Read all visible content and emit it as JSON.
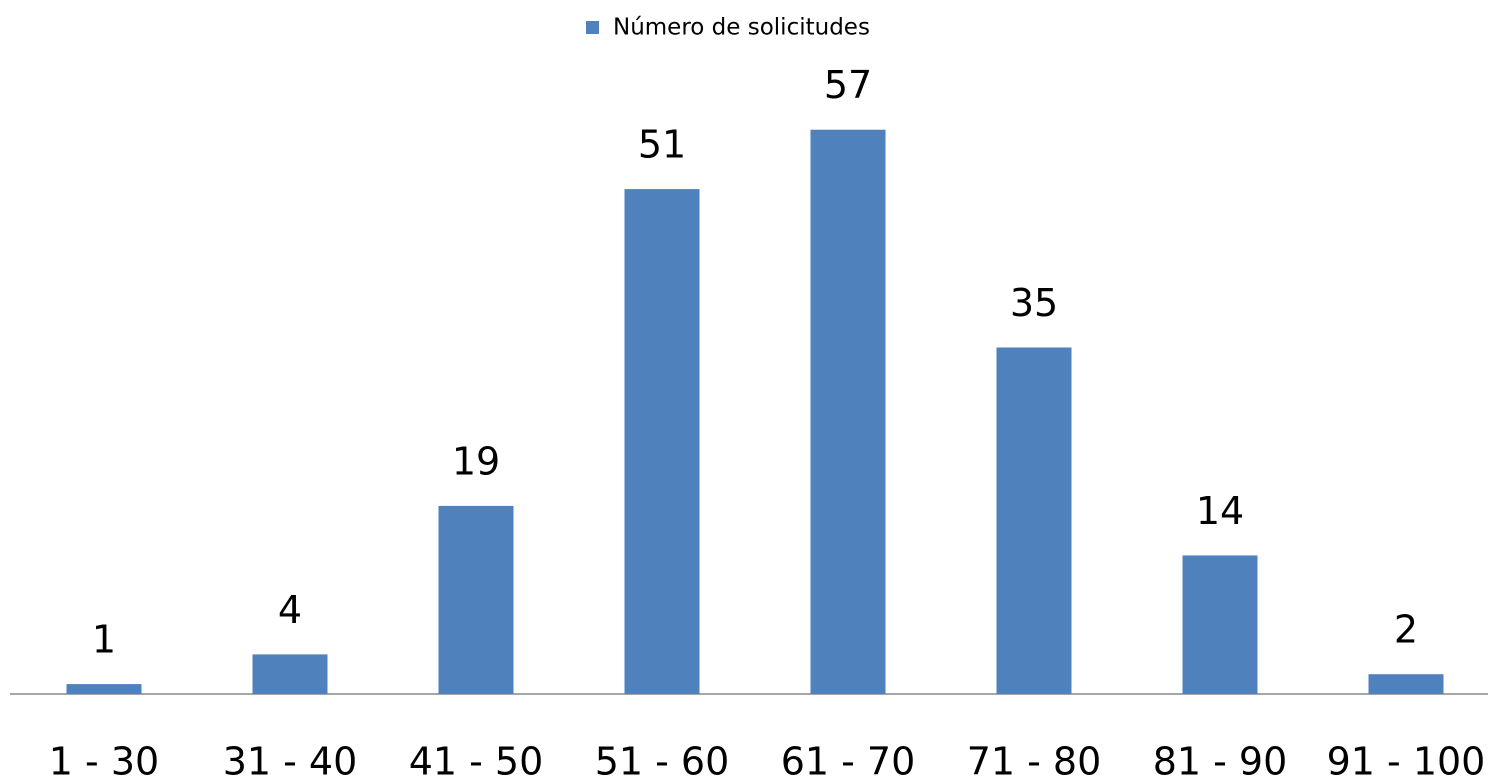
{
  "chart_data": {
    "type": "bar",
    "categories": [
      "1 - 30",
      "31 - 40",
      "41 - 50",
      "51 - 60",
      "61 - 70",
      "71 - 80",
      "81 - 90",
      "91 - 100"
    ],
    "series": [
      {
        "name": "Número de solicitudes",
        "color": "#4f81bd",
        "values": [
          1,
          4,
          19,
          51,
          57,
          35,
          14,
          2
        ]
      }
    ],
    "ylim": [
      0,
      60
    ],
    "legend": "top",
    "data_labels": true
  }
}
